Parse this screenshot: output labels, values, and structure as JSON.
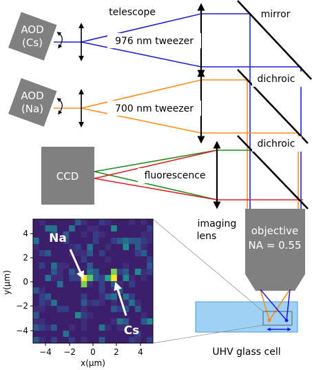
{
  "labels": {
    "telescope": "telescope",
    "mirror": "mirror",
    "dichroic_top": "dichroic",
    "dichroic_bottom": "dichroic",
    "aod_cs_line1": "AOD",
    "aod_cs_line2": "(Cs)",
    "aod_na_line1": "AOD",
    "aod_na_line2": "(Na)",
    "tweezer_976": "976 nm tweezer",
    "tweezer_700": "700 nm tweezer",
    "ccd": "CCD",
    "fluorescence": "fluorescence",
    "imaging_lens_line1": "imaging",
    "imaging_lens_line2": "lens",
    "objective_line1": "objective",
    "objective_line2": "NA = 0.55",
    "glass_cell": "UHV glass cell"
  },
  "inset": {
    "na_label": "Na",
    "cs_label": "Cs",
    "x_ticks": [
      "−4",
      "−2",
      "0",
      "2",
      "4"
    ],
    "y_ticks": [
      "4",
      "2",
      "0",
      "−2",
      "−4"
    ],
    "xlabel": "x(μm)",
    "ylabel": "y(μm)"
  },
  "colors": {
    "cs_beam": "#1f1fd6",
    "na_beam": "#ff8c1a",
    "green_beam": "#1e8a1e",
    "red_beam": "#e02020",
    "gray_box": "#808080",
    "cell_fill": "#9fd0f5",
    "cell_stroke": "#4d9de0",
    "heatmap_bg": "#3b1f6b"
  }
}
